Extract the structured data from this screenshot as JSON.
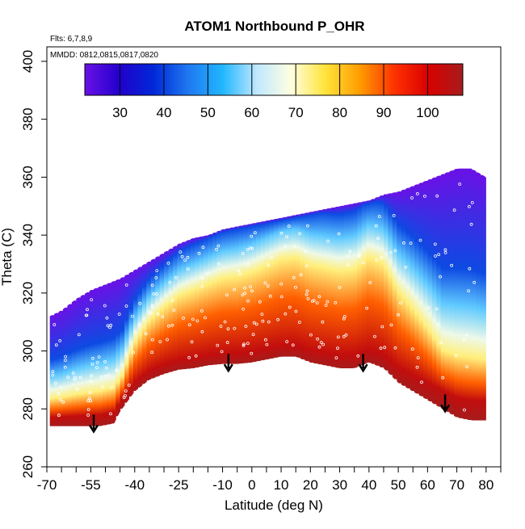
{
  "chart_data": {
    "type": "heatmap",
    "title": "ATOM1 Northbound P_OHR",
    "annotations": [
      "Flts: 6,7,8,9",
      "MMDD: 0812,0815,0817,0820"
    ],
    "xlabel": "Latitude (deg N)",
    "ylabel": "Theta (C)",
    "xlim": [
      -70,
      85
    ],
    "ylim": [
      260,
      405
    ],
    "x_ticks": [
      -70,
      -55,
      -40,
      -25,
      -10,
      0,
      10,
      20,
      30,
      40,
      50,
      60,
      70,
      80
    ],
    "x_minor_step": 5,
    "y_ticks": [
      260,
      280,
      300,
      320,
      340,
      360,
      380,
      400
    ],
    "grid": false,
    "colorbar": {
      "placement": "top",
      "range": [
        22,
        108
      ],
      "ticks": [
        30,
        40,
        50,
        60,
        70,
        80,
        90,
        100
      ],
      "colors": [
        "#6a11e6",
        "#2200cc",
        "#0028d8",
        "#1f78f0",
        "#21b6ff",
        "#bfe8ff",
        "#ffffe0",
        "#ffe43a",
        "#ff9d00",
        "#ff3200",
        "#d90000",
        "#a61c1c"
      ]
    },
    "surface_profile": {
      "lat": [
        -69,
        -60,
        -52,
        -47,
        -45,
        -40,
        -35,
        -30,
        -25,
        -20,
        -15,
        -10,
        -5,
        0,
        5,
        10,
        15,
        20,
        25,
        30,
        35,
        40,
        45,
        50,
        55,
        60,
        65,
        70,
        75,
        80
      ],
      "theta_min": [
        274,
        274,
        274,
        275,
        279,
        286,
        290,
        292,
        293.5,
        294,
        295,
        295.5,
        295.5,
        296,
        297,
        298,
        298,
        296,
        295,
        294,
        294,
        296,
        294,
        289,
        286,
        283,
        280,
        277,
        276,
        276
      ]
    },
    "top_profile": {
      "lat": [
        -69,
        -65,
        -60,
        -55,
        -50,
        -45,
        -40,
        -35,
        -30,
        -25,
        -20,
        -15,
        -10,
        -5,
        0,
        5,
        10,
        15,
        20,
        25,
        30,
        35,
        40,
        45,
        50,
        55,
        60,
        65,
        70,
        75,
        80
      ],
      "theta_max": [
        312,
        314,
        318,
        321,
        323,
        325,
        328,
        331,
        334,
        337,
        339,
        340,
        342,
        343,
        344,
        345,
        346,
        347,
        348,
        349,
        350,
        351,
        352,
        354,
        355,
        357,
        359,
        361,
        363,
        363,
        360
      ]
    },
    "arrows": [
      {
        "lat": -54,
        "theta": 278
      },
      {
        "lat": -8,
        "theta": 299
      },
      {
        "lat": 38,
        "theta": 299
      },
      {
        "lat": 66,
        "theta": 285
      }
    ]
  }
}
